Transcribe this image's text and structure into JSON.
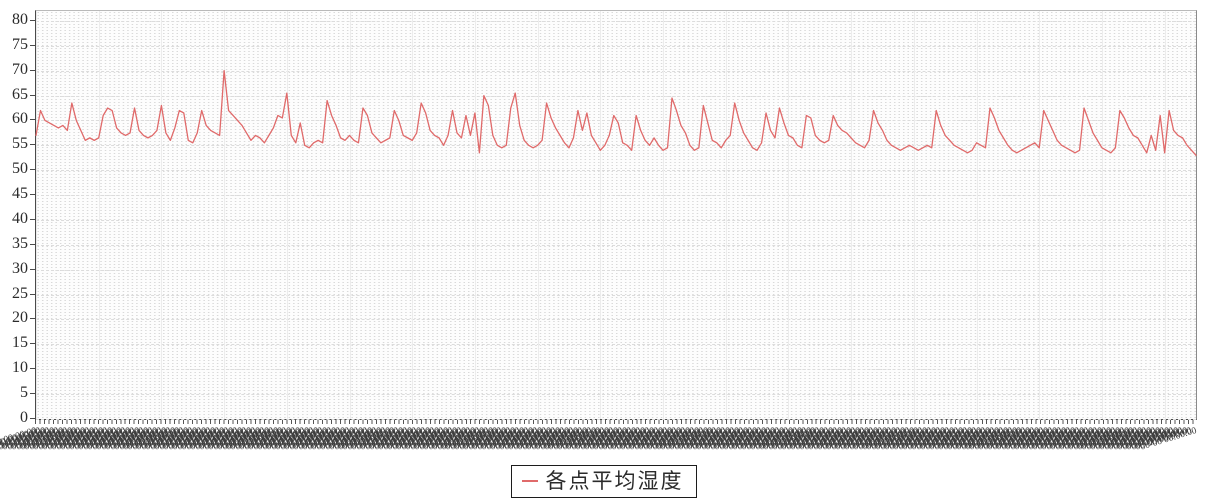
{
  "legend": {
    "label": "各点平均湿度"
  },
  "colors": {
    "line": "#e06a6a",
    "grid_dot": "#d9d9d9",
    "grid_major": "#dcdcdc",
    "axis": "#4a4a4a",
    "text": "#2b2b2b",
    "plot_bg": "#fdfdfd"
  },
  "chart_data": {
    "type": "line",
    "title": "",
    "xlabel": "",
    "ylabel": "",
    "ylim": [
      0,
      82
    ],
    "y_ticks": [
      0,
      5,
      10,
      15,
      20,
      25,
      30,
      35,
      40,
      45,
      50,
      55,
      60,
      65,
      70,
      75,
      80
    ],
    "grid": true,
    "legend_position": "bottom",
    "x_labels": {
      "legible": false,
      "style": "dense rotated overlapping timestamp labels, one per data point",
      "sample": "00-00 00:00:00"
    },
    "x_tick_count": 260,
    "vgrid_every": 14,
    "series": [
      {
        "name": "各点平均湿度",
        "color": "#e06a6a",
        "values": [
          57,
          62,
          60,
          59.5,
          59,
          58.5,
          59,
          58,
          63.5,
          60,
          58,
          56,
          56.5,
          56,
          56.5,
          61,
          62.5,
          62,
          58.5,
          57.5,
          57,
          57.5,
          62.5,
          58,
          57,
          56.5,
          57,
          58,
          63,
          57.5,
          56,
          58.5,
          62,
          61.5,
          56,
          55.5,
          57.5,
          62,
          59,
          58,
          57.5,
          57,
          70,
          62,
          61,
          60,
          59,
          57.5,
          56,
          57,
          56.5,
          55.5,
          57,
          58.5,
          61,
          60.5,
          65.5,
          57,
          55.5,
          59.5,
          55,
          54.5,
          55.5,
          56,
          55.5,
          64,
          61,
          59,
          56.5,
          56,
          57,
          56,
          55.5,
          62.5,
          61,
          57.5,
          56.5,
          55.5,
          56,
          56.5,
          62,
          60,
          57,
          56.5,
          56,
          57.5,
          63.5,
          61.5,
          58,
          57,
          56.5,
          55,
          57,
          62,
          57.5,
          56.5,
          61,
          57,
          61.5,
          53.5,
          65,
          63,
          57,
          55,
          54.5,
          55,
          62.5,
          65.5,
          59,
          56,
          55,
          54.5,
          55,
          56,
          63.5,
          60.5,
          58.5,
          57,
          55.5,
          54.5,
          56.5,
          62,
          58,
          61.5,
          57,
          55.5,
          54,
          55,
          57,
          61,
          59.5,
          55.5,
          55,
          54,
          61,
          58,
          56,
          55,
          56.5,
          55,
          54,
          54.5,
          64.5,
          62,
          59,
          57.5,
          55,
          54,
          54.5,
          63,
          59.5,
          56,
          55.5,
          54.5,
          56,
          57,
          63.5,
          60,
          57.5,
          56,
          54.5,
          54,
          55.5,
          61.5,
          58,
          56.5,
          62.5,
          59.5,
          57,
          56.5,
          55,
          54.5,
          61,
          60.5,
          57,
          56,
          55.5,
          56,
          61,
          59,
          58,
          57.5,
          56.5,
          55.5,
          55,
          54.5,
          56,
          62,
          59.5,
          58,
          56,
          55,
          54.5,
          54,
          54.5,
          55,
          54.5,
          54,
          54.5,
          55,
          54.5,
          62,
          59,
          57,
          56,
          55,
          54.5,
          54,
          53.5,
          54,
          55.5,
          55,
          54.5,
          62.5,
          60.5,
          58,
          56.5,
          55,
          54,
          53.5,
          54,
          54.5,
          55,
          55.5,
          54.5,
          62,
          60,
          58,
          56,
          55,
          54.5,
          54,
          53.5,
          54,
          62.5,
          60,
          57.5,
          56,
          54.5,
          54,
          53.5,
          54.5,
          62,
          60.5,
          58.5,
          57,
          56.5,
          55,
          53.5,
          57,
          54,
          61,
          53.5,
          62,
          58,
          57,
          56.5,
          55,
          54,
          53
        ]
      }
    ]
  }
}
